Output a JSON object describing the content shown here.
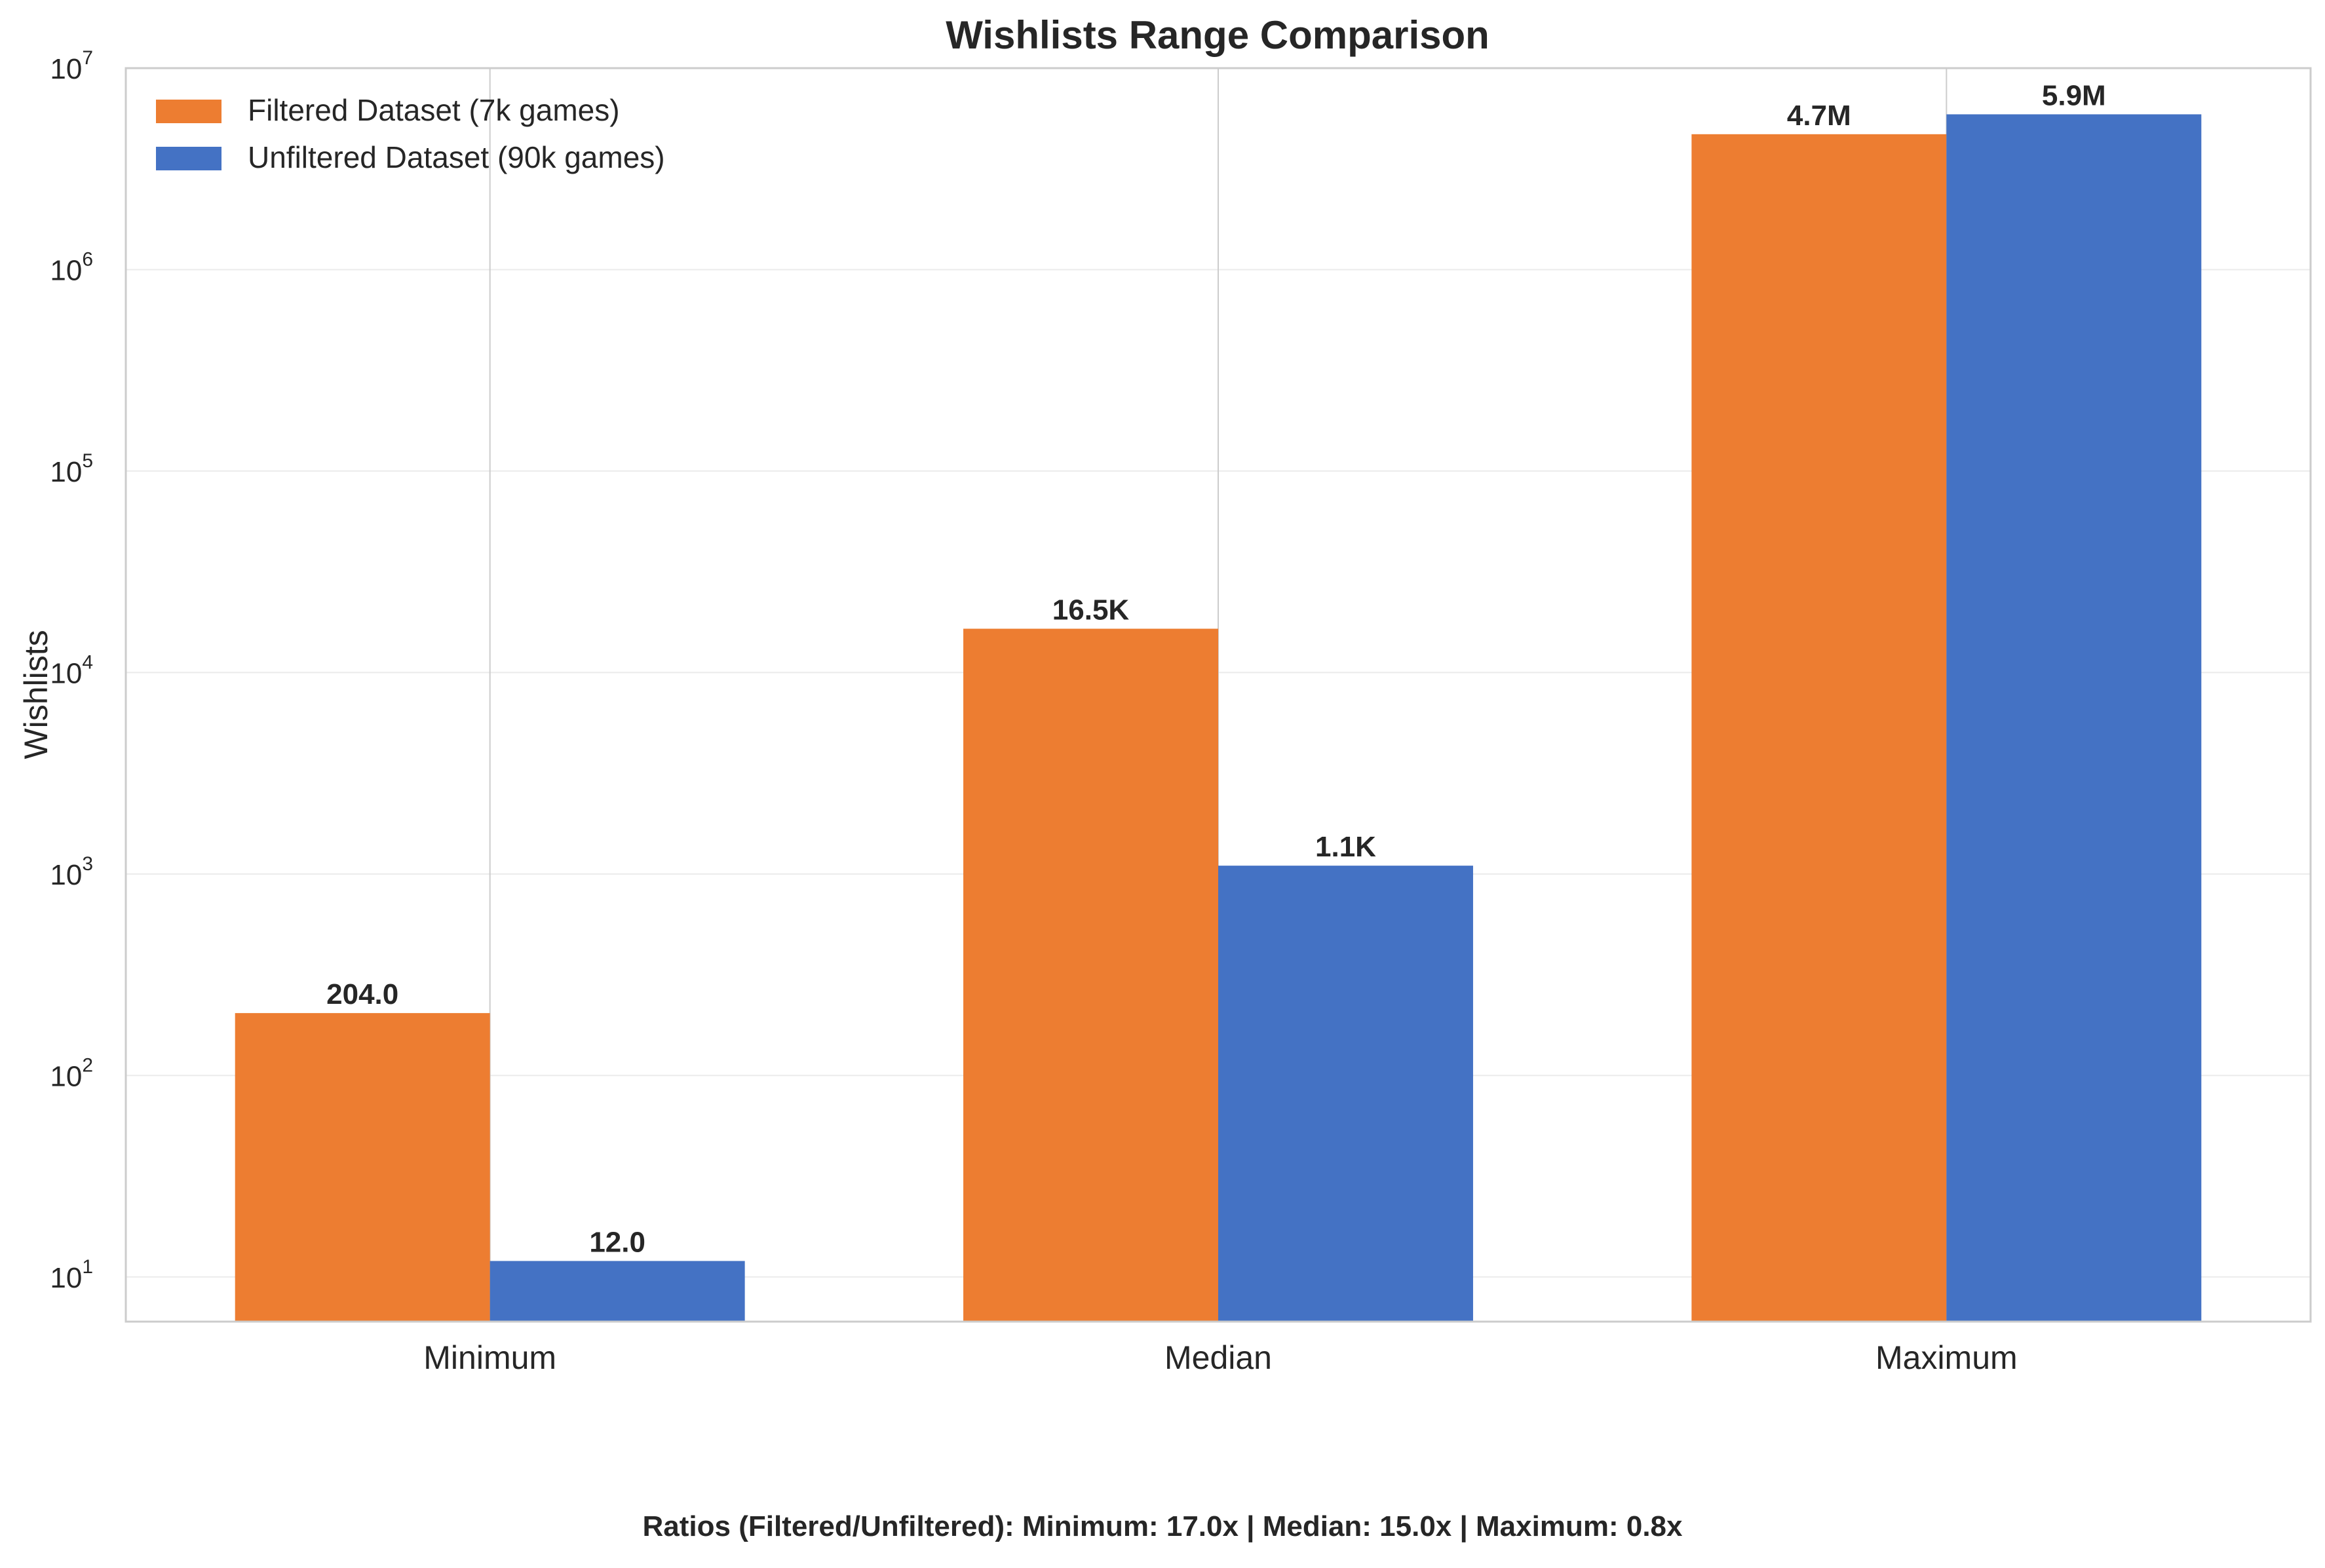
{
  "chart_data": {
    "type": "bar",
    "title": "Wishlists Range Comparison",
    "xlabel": "",
    "ylabel": "Wishlists",
    "yscale": "log",
    "ylim": [
      6,
      10000000
    ],
    "grid": true,
    "legend_position": "top-left",
    "categories": [
      "Minimum",
      "Median",
      "Maximum"
    ],
    "series": [
      {
        "name": "Filtered Dataset (7k games)",
        "color": "#ED7D31",
        "values": [
          204,
          16500,
          4700000
        ],
        "labels": [
          "204.0",
          "16.5K",
          "4.7M"
        ]
      },
      {
        "name": "Unfiltered Dataset (90k games)",
        "color": "#4472C4",
        "values": [
          12,
          1100,
          5900000
        ],
        "labels": [
          "12.0",
          "1.1K",
          "5.9M"
        ]
      }
    ],
    "yticks": [
      {
        "base": "10",
        "exp": "1"
      },
      {
        "base": "10",
        "exp": "2"
      },
      {
        "base": "10",
        "exp": "3"
      },
      {
        "base": "10",
        "exp": "4"
      },
      {
        "base": "10",
        "exp": "5"
      },
      {
        "base": "10",
        "exp": "6"
      },
      {
        "base": "10",
        "exp": "7"
      }
    ]
  },
  "footer": {
    "ratios": "Ratios (Filtered/Unfiltered): Minimum: 17.0x  |  Median: 15.0x  |  Maximum: 0.8x"
  }
}
